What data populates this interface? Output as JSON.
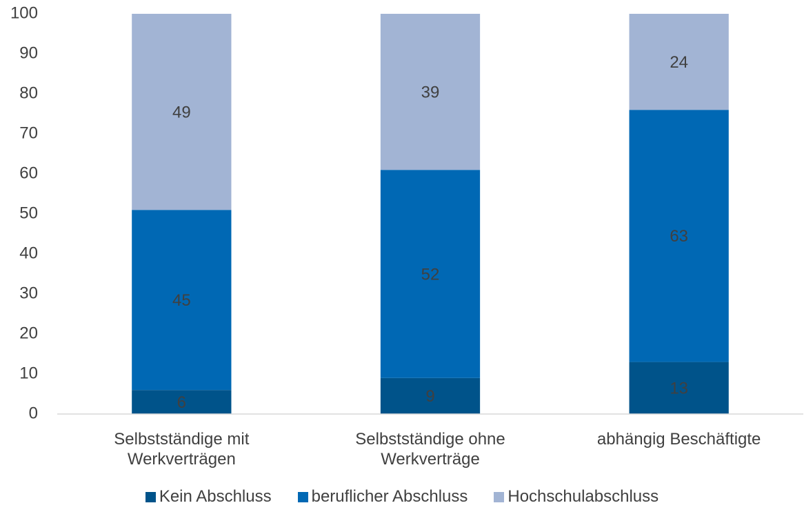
{
  "chart_data": {
    "type": "stacked_bar",
    "categories": [
      "Selbstständige mit Werkverträgen",
      "Selbstständige ohne Werkverträge",
      "abhängig Beschäftigte"
    ],
    "series": [
      {
        "name": "Kein Abschluss",
        "color": "#00538a",
        "values": [
          6,
          9,
          13
        ]
      },
      {
        "name": "beruflicher Abschluss",
        "color": "#0068b4",
        "values": [
          45,
          52,
          63
        ]
      },
      {
        "name": "Hochschulabschluss",
        "color": "#a2b4d4",
        "values": [
          49,
          39,
          24
        ]
      }
    ],
    "ylim": [
      0,
      100
    ],
    "yticks": [
      0,
      10,
      20,
      30,
      40,
      50,
      60,
      70,
      80,
      90,
      100
    ],
    "grid": false,
    "legend": "bottom",
    "data_labels": true
  }
}
